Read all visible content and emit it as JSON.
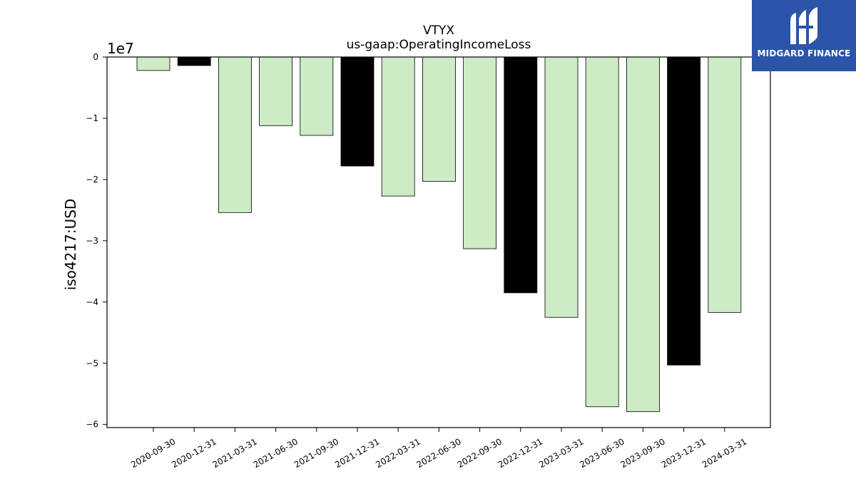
{
  "chart_data": {
    "type": "bar",
    "title": "VTYX",
    "subtitle": "us-gaap:OperatingIncomeLoss",
    "xlabel": "",
    "ylabel": "iso4217:USD",
    "y_offset_label": "1e7",
    "ylim": [
      -6.05,
      0
    ],
    "y_ticks": [
      0,
      -1,
      -2,
      -3,
      -4,
      -5,
      -6
    ],
    "y_tick_labels": [
      "0",
      "−1",
      "−2",
      "−3",
      "−4",
      "−5",
      "−6"
    ],
    "categories": [
      "2020-09-30",
      "2020-12-31",
      "2021-03-31",
      "2021-06-30",
      "2021-09-30",
      "2021-12-31",
      "2022-03-31",
      "2022-06-30",
      "2022-09-30",
      "2022-12-31",
      "2023-03-31",
      "2023-06-30",
      "2023-09-30",
      "2023-12-31",
      "2024-03-31"
    ],
    "values": [
      -0.22,
      -0.14,
      -2.54,
      -1.12,
      -1.28,
      -1.78,
      -2.27,
      -2.03,
      -3.13,
      -3.85,
      -4.25,
      -5.71,
      -5.79,
      -5.03,
      -4.17
    ],
    "bar_colors": [
      "#cdebc5",
      "#000000",
      "#cdebc5",
      "#cdebc5",
      "#cdebc5",
      "#000000",
      "#cdebc5",
      "#cdebc5",
      "#cdebc5",
      "#000000",
      "#cdebc5",
      "#cdebc5",
      "#cdebc5",
      "#000000",
      "#cdebc5"
    ],
    "grid": false,
    "legend": "none"
  },
  "logo": {
    "text": "MIDGARD FINANCE"
  },
  "colors": {
    "bar_default": "#cdebc5",
    "bar_highlight": "#000000",
    "logo_background": "#2b55a8"
  }
}
